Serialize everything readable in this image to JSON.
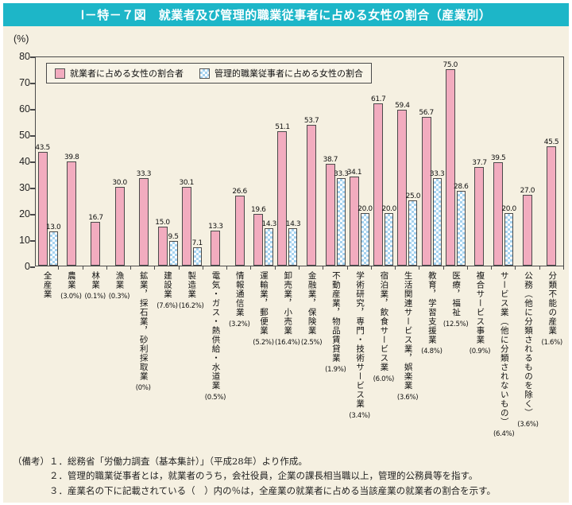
{
  "title": "Ⅰ－特－７図　就業者及び管理的職業従事者に占める女性の割合（産業別）",
  "unit_label": "(%)",
  "legend": {
    "employed_label": "就業者に占める女性の割合者",
    "managerial_label": "管理的職業従事者に占める女性の割合"
  },
  "colors": {
    "header_teal": "#1db6c8",
    "background_cream": "#f5f0e1",
    "bar_pink": "#f2acbf",
    "bar_blue_check": "#a5d2ef",
    "bar_outline": "#4a4a4a"
  },
  "y_axis": {
    "ticks": [
      0,
      10,
      20,
      30,
      40,
      50,
      60,
      70,
      80
    ],
    "max": 80
  },
  "chart_data": {
    "type": "bar",
    "title": "就業者及び管理的職業従事者に占める女性の割合（産業別）",
    "ylabel": "(%)",
    "ylim": [
      0,
      80
    ],
    "legend_position": "top-left-inside",
    "grid": false,
    "categories": [
      "全産業",
      "農業",
      "林業",
      "漁業",
      "鉱業，採石業，砂利採取業",
      "建設業",
      "製造業",
      "電気・ガス・熱供給・水道業",
      "情報通信業",
      "運輸業，郵便業",
      "卸売業，小売業",
      "金融業，保険業",
      "不動産業，物品賃貸業",
      "学術研究，専門・技術サービス業",
      "宿泊業，飲食サービス業",
      "生活関連サービス業，娯楽業",
      "教育，学習支援業",
      "医療，福祉",
      "複合サービス事業",
      "サービス業（他に分類されないもの）",
      "公務（他に分類されるものを除く）",
      "分類不能の産業"
    ],
    "category_shares": [
      "",
      "(3.0%)",
      "(0.1%)",
      "(0.3%)",
      "(0%)",
      "(7.6%)",
      "(16.2%)",
      "(0.5%)",
      "(3.2%)",
      "(5.2%)",
      "(16.4%)",
      "(2.5%)",
      "(1.9%)",
      "(3.4%)",
      "(6.0%)",
      "(3.6%)",
      "(4.8%)",
      "(12.5%)",
      "(0.9%)",
      "(6.4%)",
      "(3.6%)",
      "(1.6%)"
    ],
    "series": [
      {
        "name": "就業者に占める女性の割合者",
        "values": [
          43.5,
          39.8,
          16.7,
          30.0,
          33.3,
          15.0,
          30.1,
          13.3,
          26.6,
          19.6,
          51.1,
          53.7,
          38.7,
          34.1,
          61.7,
          59.4,
          56.7,
          75.0,
          37.7,
          39.5,
          27.0,
          45.5
        ]
      },
      {
        "name": "管理的職業従事者に占める女性の割合",
        "values": [
          13.0,
          null,
          null,
          null,
          null,
          9.5,
          7.1,
          null,
          null,
          14.3,
          14.3,
          null,
          33.3,
          20.0,
          20.0,
          25.0,
          33.3,
          28.6,
          null,
          20.0,
          null,
          null
        ]
      }
    ]
  },
  "notes": {
    "prefix": "（備考）",
    "items": [
      "１．総務省「労働力調査（基本集計）」（平成28年）より作成。",
      "２．管理的職業従事者とは，就業者のうち，会社役員，企業の課長相当職以上，管理的公務員等を指す。",
      "３．産業名の下に記載されている（　）内の％は，全産業の就業者に占める当該産業の就業者の割合を示す。"
    ]
  }
}
